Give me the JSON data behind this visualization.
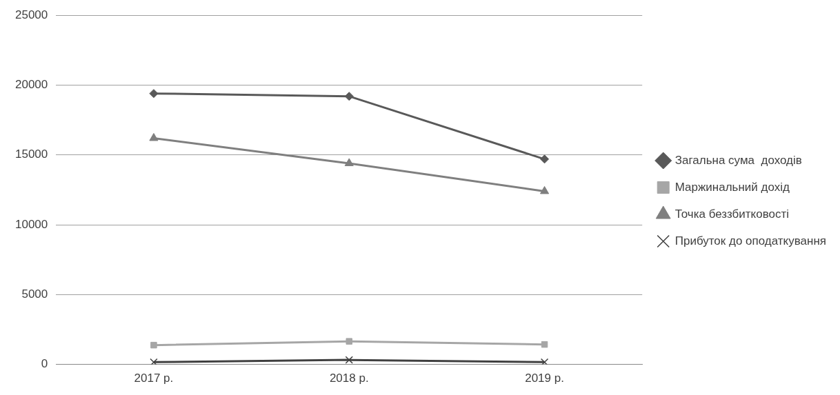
{
  "chart_data": {
    "type": "line",
    "categories": [
      "2017 р.",
      "2018 р.",
      "2019 р."
    ],
    "series": [
      {
        "name": "Загальна сума  доходів",
        "color": "#595959",
        "marker": "diamond",
        "values": [
          19400,
          19200,
          14700
        ]
      },
      {
        "name": "Маржинальний дохід",
        "color": "#a6a6a6",
        "marker": "square",
        "values": [
          1380,
          1650,
          1430
        ]
      },
      {
        "name": "Точка беззбитковості",
        "color": "#7f7f7f",
        "marker": "triangle",
        "values": [
          16200,
          14400,
          12400
        ]
      },
      {
        "name": "Прибуток до оподаткування",
        "color": "#404040",
        "marker": "cross",
        "values": [
          160,
          320,
          160
        ]
      }
    ],
    "ylim": [
      0,
      25000
    ],
    "yticks": [
      0,
      5000,
      10000,
      15000,
      20000,
      25000
    ],
    "grid": "y",
    "legend": "right"
  }
}
